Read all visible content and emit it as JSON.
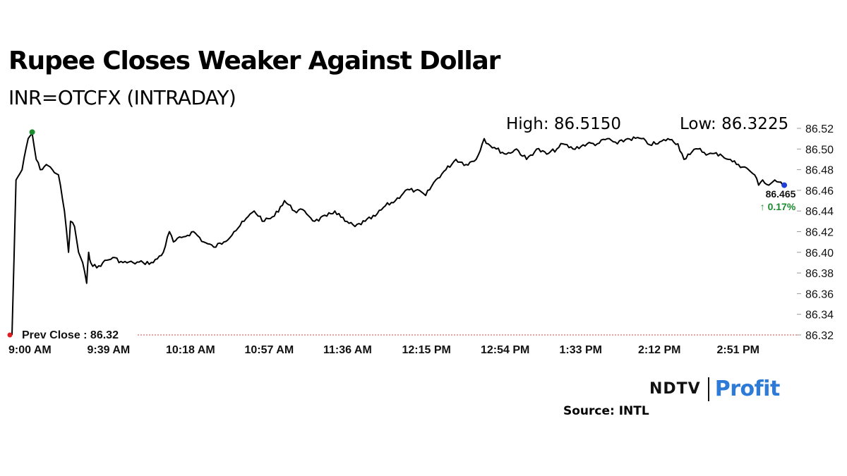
{
  "header": {
    "title": "Rupee Closes Weaker Against Dollar",
    "subtitle": "INR=OTCFX (INTRADAY)"
  },
  "annotations": {
    "high_label": "High: 86.5150",
    "low_label": "Low: 86.3225",
    "prev_close_label": "Prev Close : 86.32",
    "last_value_label": "86.465",
    "change_label": "↑ 0.17%"
  },
  "branding": {
    "logo_ndtv": "NDTV",
    "logo_profit": "Profit",
    "source": "Source: INTL"
  },
  "colors": {
    "line": "#000000",
    "high_marker": "#1a8c2e",
    "start_marker": "#e02020",
    "end_marker": "#1f3fd6",
    "prev_close_line": "#e04040",
    "change_up": "#1a8c2e",
    "logo_accent": "#2d7bd6"
  },
  "chart_data": {
    "type": "line",
    "title": "Rupee Closes Weaker Against Dollar",
    "subtitle": "INR=OTCFX (INTRADAY)",
    "xlabel": "",
    "ylabel": "",
    "x_tick_labels": [
      "9:00 AM",
      "9:39 AM",
      "10:18 AM",
      "10:57 AM",
      "11:36 AM",
      "12:15 PM",
      "12:54 PM",
      "1:33 PM",
      "2:12 PM",
      "2:51 PM"
    ],
    "y_tick_labels": [
      "86.52",
      "86.50",
      "86.48",
      "86.46",
      "86.44",
      "86.42",
      "86.40",
      "86.38",
      "86.36",
      "86.34",
      "86.32"
    ],
    "ylim": [
      86.32,
      86.525
    ],
    "y_axis_position": "right",
    "grid": false,
    "legend": "none",
    "prev_close": 86.32,
    "high": 86.515,
    "low": 86.3225,
    "last": 86.465,
    "change_pct": 0.17,
    "series": [
      {
        "x": [
          "9:00 AM",
          "9:02 AM",
          "9:05 AM",
          "9:08 AM",
          "9:10 AM",
          "9:12 AM",
          "9:14 AM",
          "9:17 AM",
          "9:20 AM",
          "9:23 AM",
          "9:26 AM",
          "9:28 AM",
          "9:29 AM",
          "9:31 AM",
          "9:33 AM",
          "9:35 AM",
          "9:37 AM",
          "9:38 AM",
          "9:39 AM",
          "9:42 AM",
          "9:45 AM",
          "9:50 AM",
          "9:55 AM",
          "10:00 AM",
          "10:05 AM",
          "10:10 AM",
          "10:15 AM",
          "10:18 AM",
          "10:20 AM",
          "10:25 AM",
          "10:30 AM",
          "10:35 AM",
          "10:40 AM",
          "10:45 AM",
          "10:50 AM",
          "10:55 AM",
          "11:00 AM",
          "11:05 AM",
          "11:10 AM",
          "11:15 AM",
          "11:20 AM",
          "11:25 AM",
          "11:30 AM",
          "11:36 AM",
          "11:40 AM",
          "11:45 AM",
          "11:50 AM",
          "11:55 AM",
          "12:00 PM",
          "12:05 PM",
          "12:10 PM",
          "12:15 PM",
          "12:20 PM",
          "12:25 PM",
          "12:30 PM",
          "12:35 PM",
          "12:40 PM",
          "12:45 PM",
          "12:50 PM",
          "12:54 PM",
          "12:56 PM",
          "1:00 PM",
          "1:05 PM",
          "1:10 PM",
          "1:15 PM",
          "1:20 PM",
          "1:25 PM",
          "1:30 PM",
          "1:33 PM",
          "1:38 PM",
          "1:45 PM",
          "1:50 PM",
          "1:55 PM",
          "2:00 PM",
          "2:05 PM",
          "2:12 PM",
          "2:15 PM",
          "2:20 PM",
          "2:25 PM",
          "2:30 PM",
          "2:33 PM",
          "2:35 PM",
          "2:40 PM",
          "2:45 PM",
          "2:51 PM",
          "2:55 PM",
          "3:00 PM",
          "3:05 PM",
          "3:08 PM",
          "3:10 PM",
          "3:12 PM",
          "3:15 PM",
          "3:18 PM",
          "3:22 PM"
        ],
        "values": [
          86.32,
          86.47,
          86.48,
          86.51,
          86.515,
          86.49,
          86.48,
          86.485,
          86.48,
          86.475,
          86.44,
          86.4,
          86.43,
          86.425,
          86.4,
          86.39,
          86.37,
          86.4,
          86.39,
          86.385,
          86.39,
          86.395,
          86.39,
          86.39,
          86.39,
          86.39,
          86.4,
          86.42,
          86.41,
          86.415,
          86.42,
          86.41,
          86.405,
          86.41,
          86.42,
          86.43,
          86.44,
          86.43,
          86.435,
          86.45,
          86.44,
          86.44,
          86.43,
          86.435,
          86.44,
          86.43,
          86.425,
          86.43,
          86.435,
          86.445,
          86.45,
          86.46,
          86.46,
          86.455,
          86.47,
          86.48,
          86.49,
          86.485,
          86.49,
          86.51,
          86.505,
          86.5,
          86.495,
          86.5,
          86.49,
          86.5,
          86.495,
          86.5,
          86.505,
          86.5,
          86.505,
          86.505,
          86.51,
          86.505,
          86.51,
          86.51,
          86.505,
          86.505,
          86.51,
          86.505,
          86.49,
          86.495,
          86.5,
          86.495,
          86.495,
          86.49,
          86.485,
          86.48,
          86.475,
          86.465,
          86.47,
          86.465,
          86.47,
          86.465
        ]
      }
    ]
  }
}
